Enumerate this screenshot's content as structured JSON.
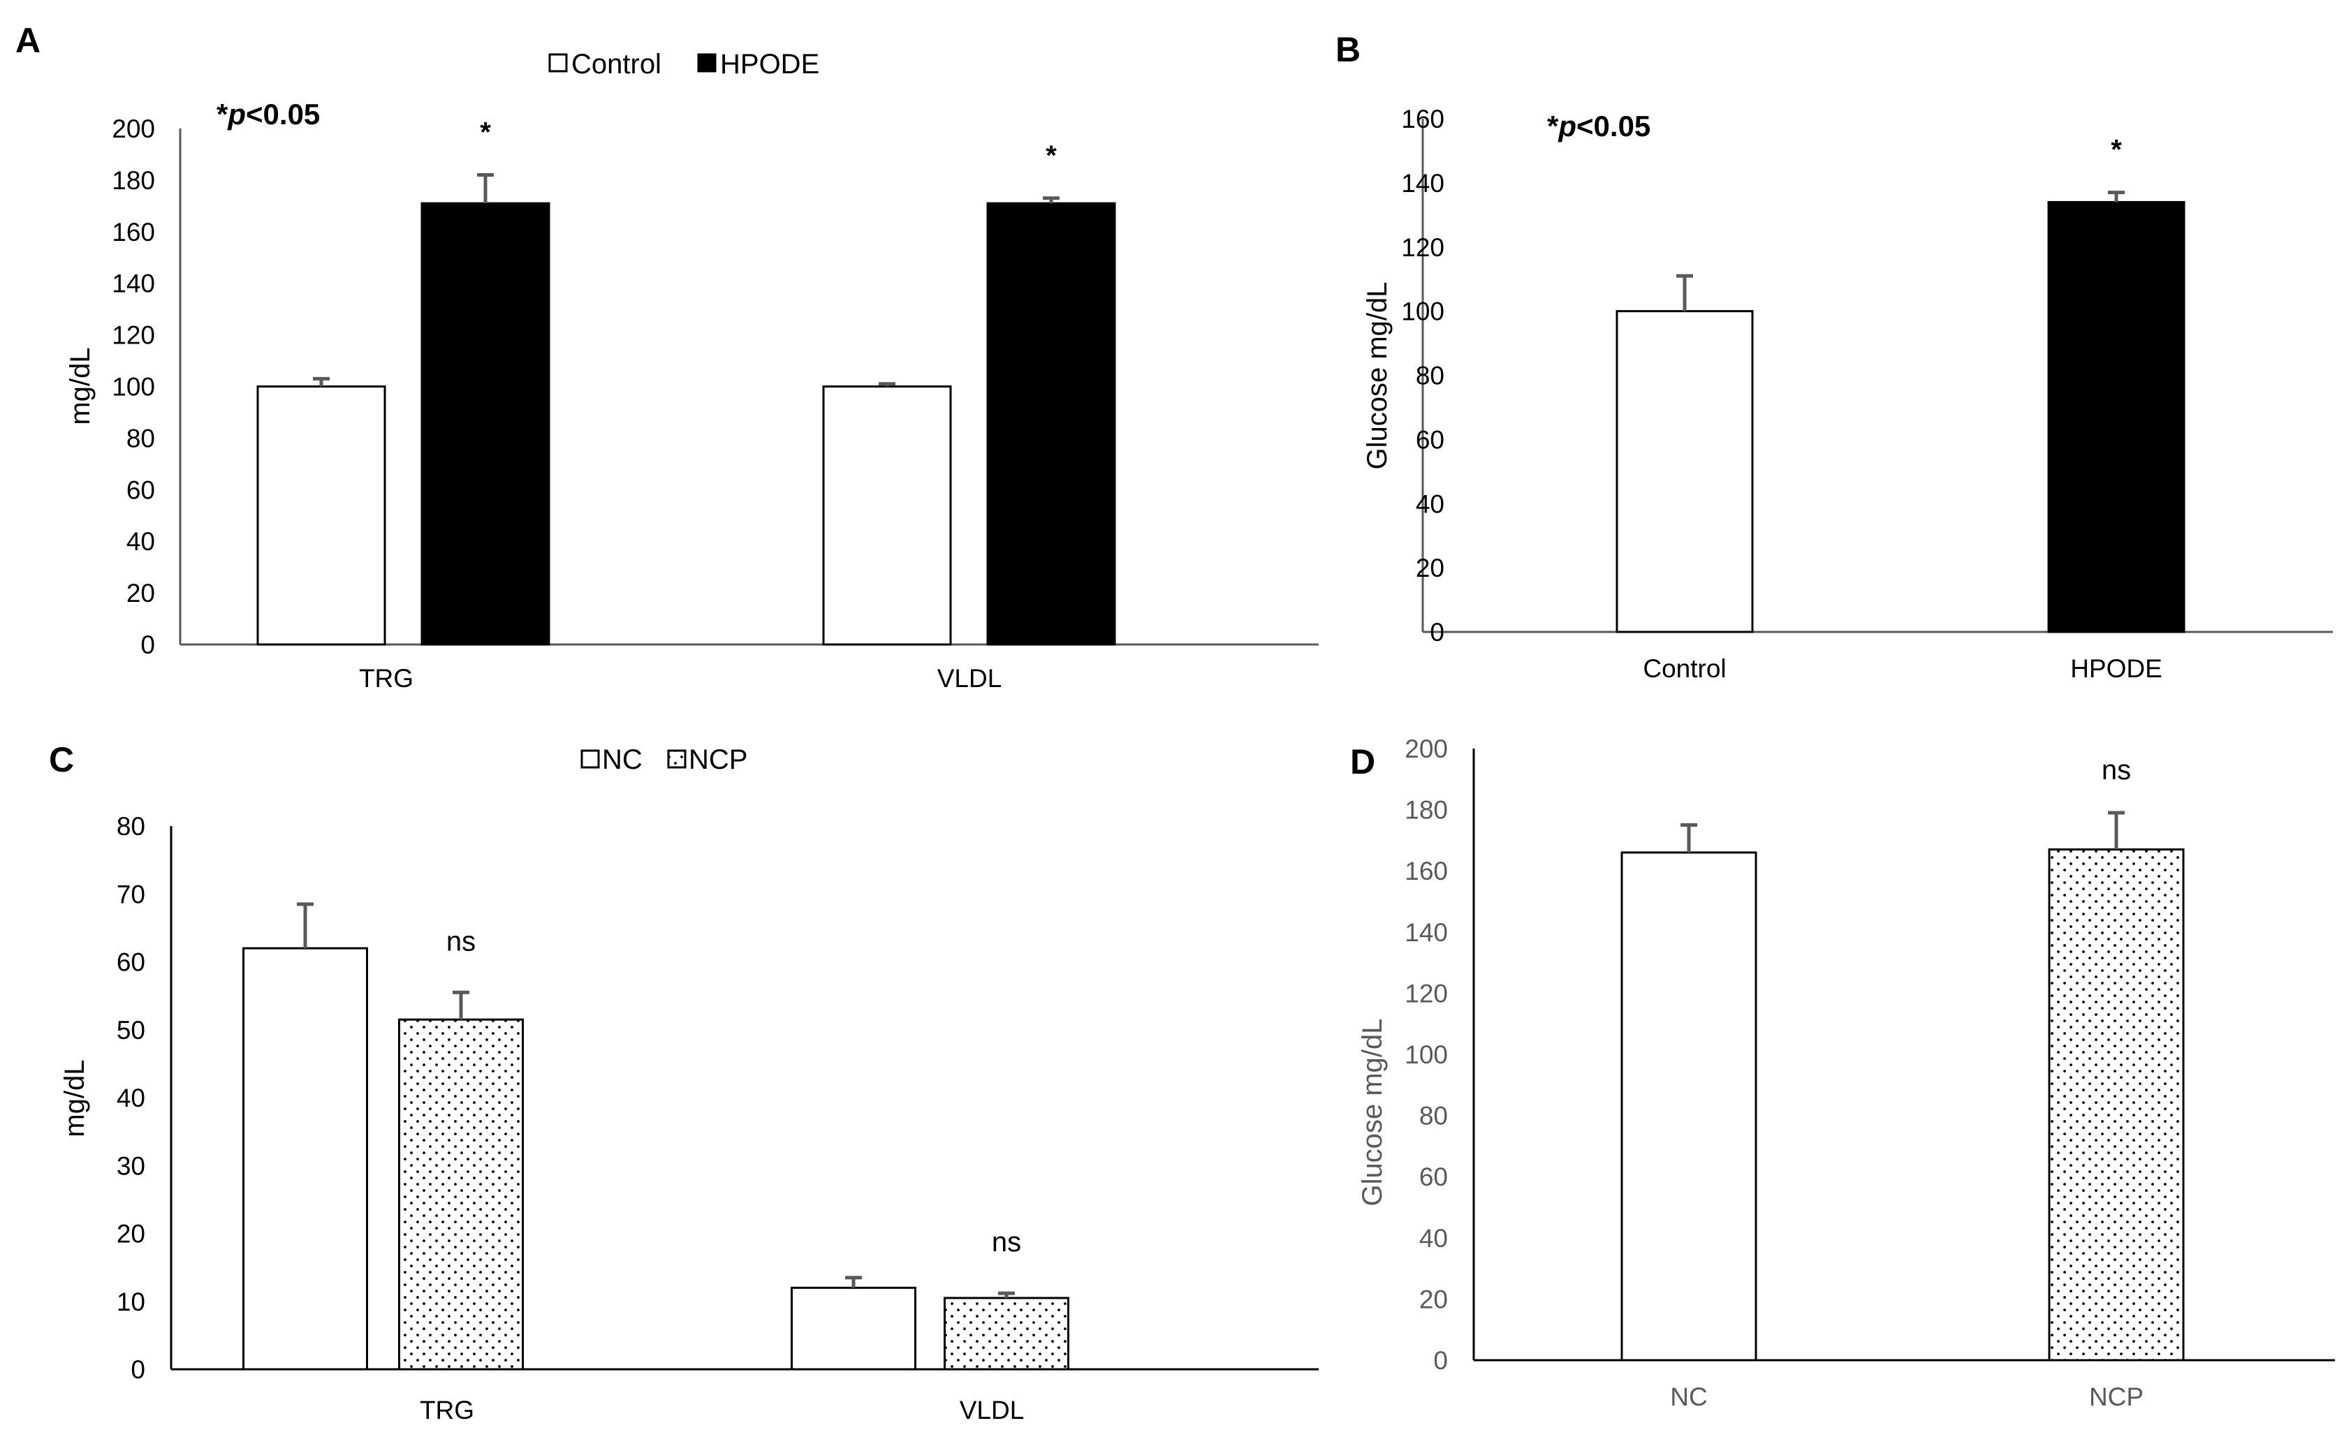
{
  "chart_data": [
    {
      "panel": "A",
      "type": "bar",
      "categories": [
        "TRG",
        "VLDL"
      ],
      "series": [
        {
          "name": "Control",
          "values": [
            100,
            100
          ],
          "errors": [
            3,
            1
          ],
          "fill": "white"
        },
        {
          "name": "HPODE",
          "values": [
            171,
            171
          ],
          "errors": [
            11,
            2
          ],
          "fill": "black"
        }
      ],
      "ylabel": "mg/dL",
      "ylim": [
        0,
        200
      ],
      "yticks": [
        "0",
        "20",
        "40",
        "60",
        "80",
        "100",
        "120",
        "140",
        "160",
        "180",
        "200"
      ],
      "annotation": {
        "star": "*",
        "italic": "p",
        "rest": "<0.05"
      },
      "significance": [
        "*",
        "*"
      ],
      "legend": [
        "Control",
        "HPODE"
      ]
    },
    {
      "panel": "B",
      "type": "bar",
      "categories": [
        "Control",
        "HPODE"
      ],
      "values": [
        100,
        134
      ],
      "errors": [
        11,
        3
      ],
      "fills": [
        "white",
        "black"
      ],
      "ylabel": "Glucose mg/dL",
      "ylim": [
        0,
        160
      ],
      "yticks": [
        "0",
        "20",
        "40",
        "60",
        "80",
        "100",
        "120",
        "140",
        "160"
      ],
      "annotation": {
        "star": "*",
        "italic": "p",
        "rest": "<0.05"
      },
      "significance": [
        "",
        "*"
      ]
    },
    {
      "panel": "C",
      "type": "bar",
      "categories": [
        "TRG",
        "VLDL"
      ],
      "series": [
        {
          "name": "NC",
          "values": [
            62,
            12
          ],
          "errors": [
            6.5,
            1.5
          ],
          "fill": "white"
        },
        {
          "name": "NCP",
          "values": [
            51.5,
            10.5
          ],
          "errors": [
            4,
            0.7
          ],
          "fill": "dots"
        }
      ],
      "ylabel": "mg/dL",
      "ylim": [
        0,
        80
      ],
      "yticks": [
        "0",
        "10",
        "20",
        "30",
        "40",
        "50",
        "60",
        "70",
        "80"
      ],
      "significance": [
        "ns",
        "ns"
      ],
      "legend": [
        "NC",
        "NCP"
      ]
    },
    {
      "panel": "D",
      "type": "bar",
      "categories": [
        "NC",
        "NCP"
      ],
      "values": [
        166,
        167
      ],
      "errors": [
        9,
        12
      ],
      "fills": [
        "white",
        "dots"
      ],
      "ylabel": "Glucose mg/dL",
      "ylim": [
        0,
        200
      ],
      "yticks": [
        "0",
        "20",
        "40",
        "60",
        "80",
        "100",
        "120",
        "140",
        "160",
        "180",
        "200"
      ],
      "significance": [
        "",
        "ns"
      ]
    }
  ]
}
